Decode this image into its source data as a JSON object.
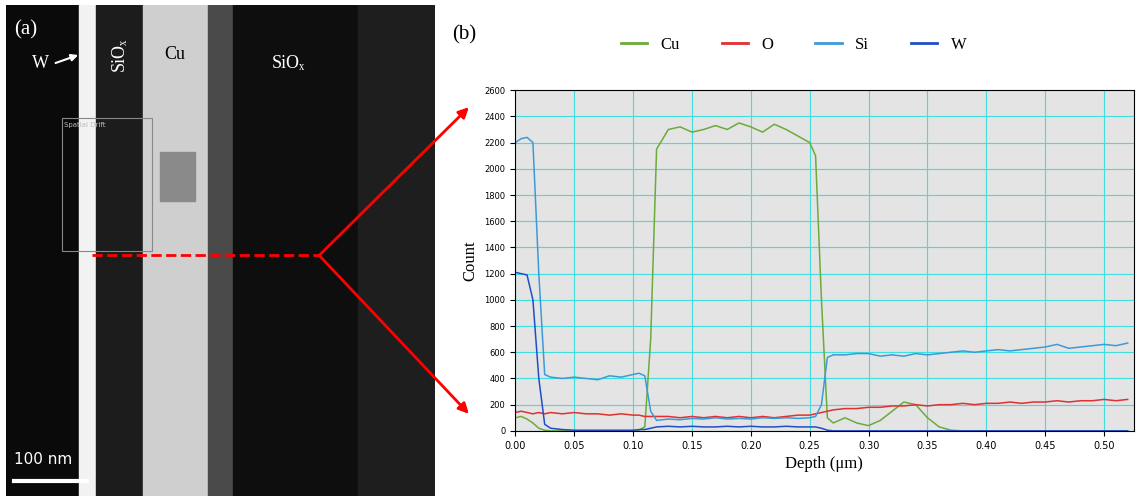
{
  "panel_a": {
    "label": "(a)",
    "layers": [
      "W",
      "SiOₓ",
      "Cu",
      "SiOₓ"
    ],
    "box_label": "Spatial Drift",
    "scale_bar": "100 nm"
  },
  "chart_data": {
    "type": "line",
    "label": "(b)",
    "xlabel": "Depth (μm)",
    "ylabel": "Count",
    "x": [
      0.0,
      0.005,
      0.01,
      0.015,
      0.02,
      0.025,
      0.03,
      0.04,
      0.05,
      0.06,
      0.07,
      0.08,
      0.09,
      0.1,
      0.105,
      0.11,
      0.115,
      0.12,
      0.13,
      0.14,
      0.15,
      0.16,
      0.17,
      0.18,
      0.19,
      0.2,
      0.21,
      0.22,
      0.23,
      0.24,
      0.25,
      0.255,
      0.26,
      0.265,
      0.27,
      0.28,
      0.29,
      0.3,
      0.31,
      0.32,
      0.33,
      0.34,
      0.35,
      0.36,
      0.37,
      0.38,
      0.39,
      0.4,
      0.41,
      0.42,
      0.43,
      0.44,
      0.45,
      0.46,
      0.47,
      0.48,
      0.49,
      0.5,
      0.51,
      0.52
    ],
    "series": [
      {
        "name": "Cu",
        "color": "#6aab3c",
        "values": [
          100,
          110,
          90,
          60,
          20,
          5,
          0,
          0,
          0,
          0,
          0,
          0,
          0,
          0,
          5,
          30,
          700,
          2150,
          2300,
          2320,
          2280,
          2300,
          2330,
          2300,
          2350,
          2320,
          2280,
          2340,
          2300,
          2250,
          2200,
          2100,
          1000,
          100,
          60,
          100,
          60,
          40,
          80,
          150,
          220,
          200,
          100,
          30,
          5,
          0,
          0,
          0,
          0,
          0,
          0,
          0,
          0,
          0,
          0,
          0,
          0,
          0,
          0,
          0
        ]
      },
      {
        "name": "O",
        "color": "#e03030",
        "values": [
          140,
          150,
          140,
          130,
          140,
          130,
          140,
          130,
          140,
          130,
          130,
          120,
          130,
          120,
          120,
          110,
          110,
          110,
          110,
          100,
          110,
          100,
          110,
          100,
          110,
          100,
          110,
          100,
          110,
          120,
          120,
          130,
          140,
          150,
          160,
          170,
          170,
          180,
          180,
          190,
          190,
          200,
          190,
          200,
          200,
          210,
          200,
          210,
          210,
          220,
          210,
          220,
          220,
          230,
          220,
          230,
          230,
          240,
          230,
          240
        ]
      },
      {
        "name": "Si",
        "color": "#3c9ad8",
        "values": [
          2200,
          2230,
          2240,
          2200,
          1200,
          430,
          410,
          400,
          410,
          400,
          390,
          420,
          410,
          430,
          440,
          420,
          150,
          80,
          90,
          85,
          95,
          90,
          100,
          90,
          95,
          90,
          100,
          95,
          100,
          95,
          100,
          110,
          200,
          560,
          580,
          580,
          590,
          590,
          570,
          580,
          570,
          590,
          580,
          590,
          600,
          610,
          600,
          610,
          620,
          610,
          620,
          630,
          640,
          660,
          630,
          640,
          650,
          660,
          650,
          670
        ]
      },
      {
        "name": "W",
        "color": "#1f4ec8",
        "values": [
          1210,
          1200,
          1190,
          1000,
          400,
          50,
          20,
          10,
          5,
          5,
          5,
          5,
          5,
          5,
          10,
          10,
          20,
          30,
          35,
          30,
          35,
          30,
          30,
          35,
          30,
          35,
          30,
          30,
          35,
          30,
          30,
          30,
          20,
          5,
          0,
          0,
          0,
          0,
          0,
          0,
          0,
          0,
          0,
          0,
          0,
          0,
          0,
          0,
          0,
          0,
          0,
          0,
          0,
          0,
          0,
          0,
          0,
          0,
          0,
          0
        ]
      }
    ],
    "xlim": [
      0,
      0.525
    ],
    "xticks": [
      {
        "value": 0.0,
        "label": "0.00"
      },
      {
        "value": 0.05,
        "label": "0.05"
      },
      {
        "value": 0.1,
        "label": "0.10"
      },
      {
        "value": 0.15,
        "label": "0.15"
      },
      {
        "value": 0.2,
        "label": "0.20"
      },
      {
        "value": 0.25,
        "label": "0.25"
      },
      {
        "value": 0.3,
        "label": "0.30"
      },
      {
        "value": 0.35,
        "label": "0.35"
      },
      {
        "value": 0.4,
        "label": "0.40"
      },
      {
        "value": 0.45,
        "label": "0.45"
      },
      {
        "value": 0.5,
        "label": "0.50"
      }
    ],
    "ylim": [
      0,
      2600
    ],
    "yticks": [
      0,
      200,
      400,
      600,
      800,
      1000,
      1200,
      1400,
      1600,
      1800,
      2000,
      2200,
      2400,
      2600
    ],
    "grid": true,
    "legend": "upper center"
  }
}
